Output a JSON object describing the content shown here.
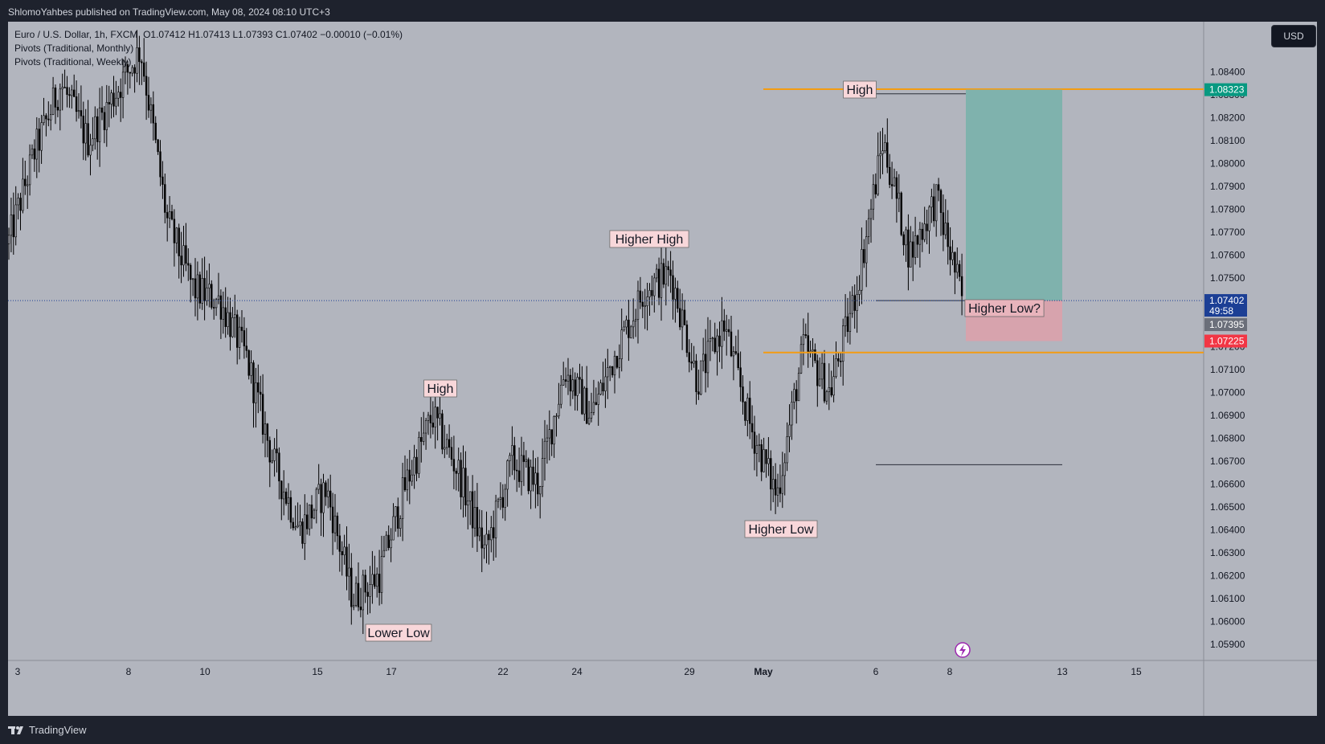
{
  "header": {
    "publish_line": "ShlomoYahbes published on TradingView.com, May 08, 2024 08:10 UTC+3"
  },
  "footer": {
    "brand": "TradingView"
  },
  "legend": {
    "symbol": "Euro / U.S. Dollar, 1h, FXCM",
    "ohlc": "O1.07412 H1.07413 L1.07393 C1.07402 −0.00010 (−0.01%)",
    "indicator_1": "Pivots (Traditional, Monthly)",
    "indicator_2": "Pivots (Traditional, Weekly)"
  },
  "currency_button": "USD",
  "colors": {
    "background": "#b2b5be",
    "candles": "#000000",
    "pivot_lines": "#f39c12",
    "target_zone": "#7fb2ad",
    "stop_zone": "#d7a3ad",
    "last_price_tag": "#1c3f95",
    "target_tag": "#089981",
    "stop_tag": "#f23645"
  },
  "price_tags": {
    "target": "1.08323",
    "last": "1.07402",
    "countdown": "49:58",
    "bid": "1.07395",
    "stop": "1.07225"
  },
  "chart_data": {
    "type": "candlestick",
    "symbol": "EUR/USD",
    "timeframe": "1h",
    "y_axis": {
      "ticks": [
        "1.08400",
        "1.08300",
        "1.08200",
        "1.08100",
        "1.08000",
        "1.07900",
        "1.07800",
        "1.07700",
        "1.07600",
        "1.07500",
        "1.07400",
        "1.07300",
        "1.07200",
        "1.07100",
        "1.07000",
        "1.06900",
        "1.06800",
        "1.06700",
        "1.06600",
        "1.06500",
        "1.06400",
        "1.06300",
        "1.06200",
        "1.06100",
        "1.06000",
        "1.05900"
      ],
      "range": [
        1.0583,
        1.0862
      ]
    },
    "x_axis": {
      "ticks": [
        "3",
        "8",
        "10",
        "15",
        "17",
        "22",
        "24",
        "29",
        "May",
        "6",
        "8",
        "13",
        "15"
      ]
    },
    "swing_path": [
      [
        "3",
        1.0765
      ],
      [
        "5",
        1.0805
      ],
      [
        "7",
        1.0835
      ],
      [
        "8",
        1.081
      ],
      [
        "9",
        1.083
      ],
      [
        "10",
        1.085
      ],
      [
        "10",
        1.0775
      ],
      [
        "11",
        1.0745
      ],
      [
        "12",
        1.074
      ],
      [
        "13",
        1.0715
      ],
      [
        "14",
        1.067
      ],
      [
        "15",
        1.064
      ],
      [
        "15",
        1.0658
      ],
      [
        "16",
        1.061
      ],
      [
        "17",
        1.062
      ],
      [
        "18",
        1.066
      ],
      [
        "19",
        1.069
      ],
      [
        "20",
        1.0665
      ],
      [
        "21",
        1.063
      ],
      [
        "22",
        1.067
      ],
      [
        "23",
        1.066
      ],
      [
        "24",
        1.071
      ],
      [
        "25",
        1.069
      ],
      [
        "26",
        1.072
      ],
      [
        "27",
        1.0745
      ],
      [
        "28",
        1.0752
      ],
      [
        "29",
        1.0705
      ],
      [
        "30",
        1.073
      ],
      [
        "1",
        1.0685
      ],
      [
        "2",
        1.0655
      ],
      [
        "3",
        1.072
      ],
      [
        "4",
        1.07
      ],
      [
        "5",
        1.0745
      ],
      [
        "6",
        1.081
      ],
      [
        "7",
        1.076
      ],
      [
        "8",
        1.0785
      ],
      [
        "8",
        1.07402
      ]
    ],
    "pivot_levels": [
      1.08325,
      1.07175
    ],
    "position": {
      "entry": 1.07402,
      "target": 1.08323,
      "stop": 1.07225
    },
    "reference_levels": [
      1.08305,
      1.07402,
      1.06685
    ],
    "annotations": [
      {
        "text": "High",
        "price": 1.083
      },
      {
        "text": "High",
        "price": 1.0697
      },
      {
        "text": "Higher High",
        "price": 1.076
      },
      {
        "text": "Higher Low",
        "price": 1.0643
      },
      {
        "text": "Lower Low",
        "price": 1.0599
      },
      {
        "text": "Higher Low?",
        "price": 1.0733
      }
    ]
  }
}
